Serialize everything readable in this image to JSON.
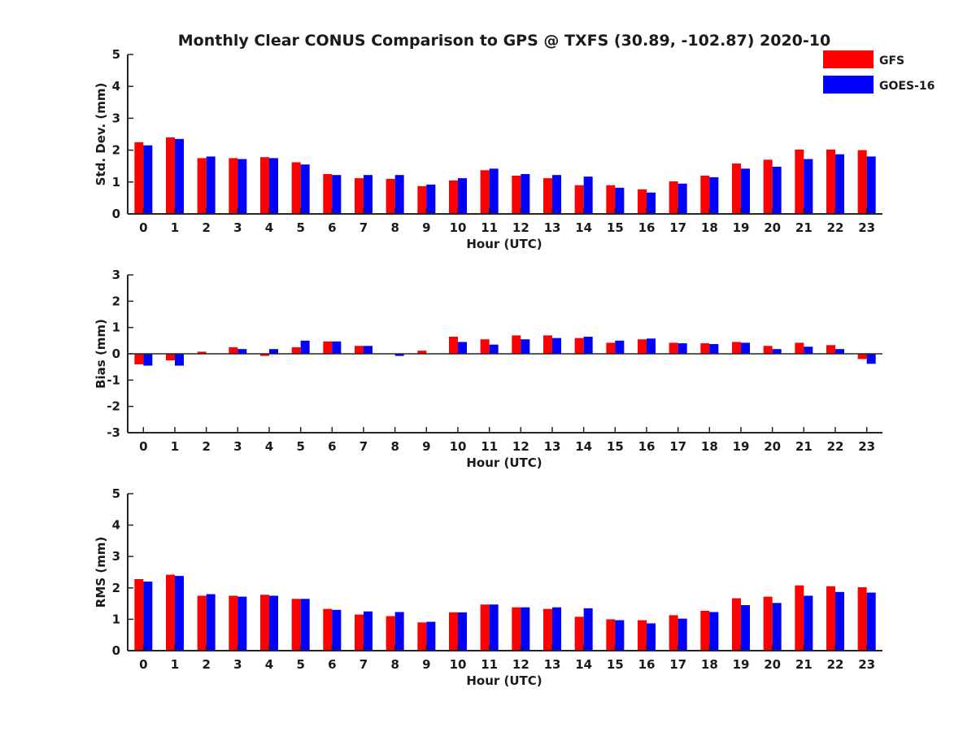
{
  "title": "Monthly Clear CONUS Comparison to GPS @ TXFS (30.89, -102.87) 2020-10",
  "legend": {
    "placement": "top-right",
    "items": [
      {
        "label": "GFS",
        "color": "#ff0000"
      },
      {
        "label": "GOES-16",
        "color": "#0000ff"
      }
    ]
  },
  "chart_data": [
    {
      "type": "bar",
      "xlabel": "Hour (UTC)",
      "ylabel": "Std. Dev. (mm)",
      "ylim": [
        0,
        5
      ],
      "yticks": [
        0,
        1,
        2,
        3,
        4,
        5
      ],
      "categories": [
        "0",
        "1",
        "2",
        "3",
        "4",
        "5",
        "6",
        "7",
        "8",
        "9",
        "10",
        "11",
        "12",
        "13",
        "14",
        "15",
        "16",
        "17",
        "18",
        "19",
        "20",
        "21",
        "22",
        "23"
      ],
      "series": [
        {
          "name": "GFS",
          "color": "#ff0000",
          "values": [
            2.25,
            2.4,
            1.75,
            1.75,
            1.78,
            1.62,
            1.25,
            1.12,
            1.1,
            0.87,
            1.05,
            1.37,
            1.2,
            1.12,
            0.9,
            0.9,
            0.77,
            1.02,
            1.2,
            1.58,
            1.7,
            2.02,
            2.02,
            2.0
          ]
        },
        {
          "name": "GOES-16",
          "color": "#0000ff",
          "values": [
            2.15,
            2.35,
            1.8,
            1.72,
            1.75,
            1.55,
            1.22,
            1.22,
            1.22,
            0.92,
            1.12,
            1.42,
            1.25,
            1.22,
            1.17,
            0.82,
            0.67,
            0.95,
            1.15,
            1.42,
            1.48,
            1.72,
            1.87,
            1.8
          ]
        }
      ]
    },
    {
      "type": "bar",
      "xlabel": "Hour (UTC)",
      "ylabel": "Bias (mm)",
      "ylim": [
        -3,
        3
      ],
      "yticks": [
        -3,
        -2,
        -1,
        0,
        1,
        2,
        3
      ],
      "categories": [
        "0",
        "1",
        "2",
        "3",
        "4",
        "5",
        "6",
        "7",
        "8",
        "9",
        "10",
        "11",
        "12",
        "13",
        "14",
        "15",
        "16",
        "17",
        "18",
        "19",
        "20",
        "21",
        "22",
        "23"
      ],
      "series": [
        {
          "name": "GFS",
          "color": "#ff0000",
          "values": [
            -0.4,
            -0.25,
            0.08,
            0.25,
            -0.08,
            0.25,
            0.47,
            0.3,
            0.0,
            0.12,
            0.65,
            0.55,
            0.7,
            0.7,
            0.6,
            0.42,
            0.55,
            0.42,
            0.4,
            0.45,
            0.3,
            0.42,
            0.33,
            -0.2
          ]
        },
        {
          "name": "GOES-16",
          "color": "#0000ff",
          "values": [
            -0.45,
            -0.45,
            0.0,
            0.18,
            0.18,
            0.5,
            0.47,
            0.3,
            -0.08,
            0.0,
            0.45,
            0.35,
            0.55,
            0.6,
            0.65,
            0.5,
            0.58,
            0.4,
            0.37,
            0.42,
            0.18,
            0.27,
            0.18,
            -0.38
          ]
        }
      ]
    },
    {
      "type": "bar",
      "xlabel": "Hour (UTC)",
      "ylabel": "RMS (mm)",
      "ylim": [
        0,
        5
      ],
      "yticks": [
        0,
        1,
        2,
        3,
        4,
        5
      ],
      "categories": [
        "0",
        "1",
        "2",
        "3",
        "4",
        "5",
        "6",
        "7",
        "8",
        "9",
        "10",
        "11",
        "12",
        "13",
        "14",
        "15",
        "16",
        "17",
        "18",
        "19",
        "20",
        "21",
        "22",
        "23"
      ],
      "series": [
        {
          "name": "GFS",
          "color": "#ff0000",
          "values": [
            2.28,
            2.42,
            1.75,
            1.75,
            1.78,
            1.65,
            1.33,
            1.15,
            1.1,
            0.9,
            1.22,
            1.47,
            1.38,
            1.33,
            1.08,
            1.0,
            0.97,
            1.13,
            1.27,
            1.67,
            1.72,
            2.08,
            2.05,
            2.02
          ]
        },
        {
          "name": "GOES-16",
          "color": "#0000ff",
          "values": [
            2.2,
            2.38,
            1.8,
            1.72,
            1.75,
            1.65,
            1.3,
            1.25,
            1.23,
            0.92,
            1.22,
            1.47,
            1.38,
            1.38,
            1.35,
            0.97,
            0.87,
            1.02,
            1.23,
            1.45,
            1.52,
            1.75,
            1.87,
            1.85
          ]
        }
      ]
    }
  ]
}
